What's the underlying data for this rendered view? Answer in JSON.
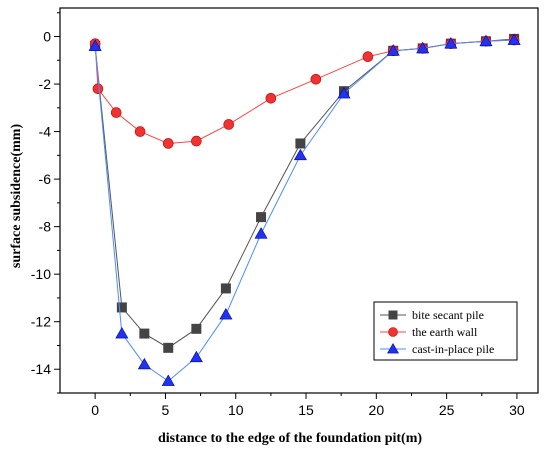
{
  "chart_data": {
    "type": "line",
    "xlabel": "distance to the edge of the foundation pit(m)",
    "ylabel": "surface subsidence(mm)",
    "xlim": [
      -2.5,
      31.5
    ],
    "ylim": [
      -15.0,
      1.2
    ],
    "xticks": [
      0,
      5,
      10,
      15,
      20,
      25,
      30
    ],
    "yticks": [
      0,
      -2,
      -4,
      -6,
      -8,
      -10,
      -12,
      -14
    ],
    "legend_position": "bottom-right",
    "grid": false,
    "series": [
      {
        "name": "bite secant pile",
        "color": "#444444",
        "marker": "square",
        "x": [
          0,
          1.9,
          3.5,
          5.2,
          7.2,
          9.3,
          11.8,
          14.6,
          17.7,
          21.2,
          23.3,
          25.3,
          27.8,
          29.8
        ],
        "y": [
          -0.4,
          -11.4,
          -12.5,
          -13.1,
          -12.3,
          -10.6,
          -7.6,
          -4.5,
          -2.3,
          -0.6,
          -0.5,
          -0.3,
          -0.2,
          -0.1
        ]
      },
      {
        "name": "the earth wall",
        "color": "#ff0000",
        "marker": "circle",
        "x": [
          0,
          0.2,
          1.5,
          3.2,
          5.2,
          7.2,
          9.5,
          12.5,
          15.7,
          19.4,
          21.2,
          23.3,
          25.3,
          27.8,
          29.8
        ],
        "y": [
          -0.3,
          -2.2,
          -3.2,
          -4.0,
          -4.5,
          -4.4,
          -3.7,
          -2.6,
          -1.8,
          -0.85,
          -0.6,
          -0.5,
          -0.3,
          -0.2,
          -0.15
        ]
      },
      {
        "name": "cast-in-place pile",
        "color": "#0000ff",
        "marker": "triangle",
        "x": [
          0,
          1.9,
          3.5,
          5.2,
          7.2,
          9.3,
          11.8,
          14.6,
          17.7,
          21.2,
          23.3,
          25.3,
          27.8,
          29.8
        ],
        "y": [
          -0.4,
          -12.5,
          -13.8,
          -14.5,
          -13.5,
          -11.7,
          -8.3,
          -5.0,
          -2.4,
          -0.6,
          -0.5,
          -0.3,
          -0.2,
          -0.15
        ]
      }
    ]
  }
}
